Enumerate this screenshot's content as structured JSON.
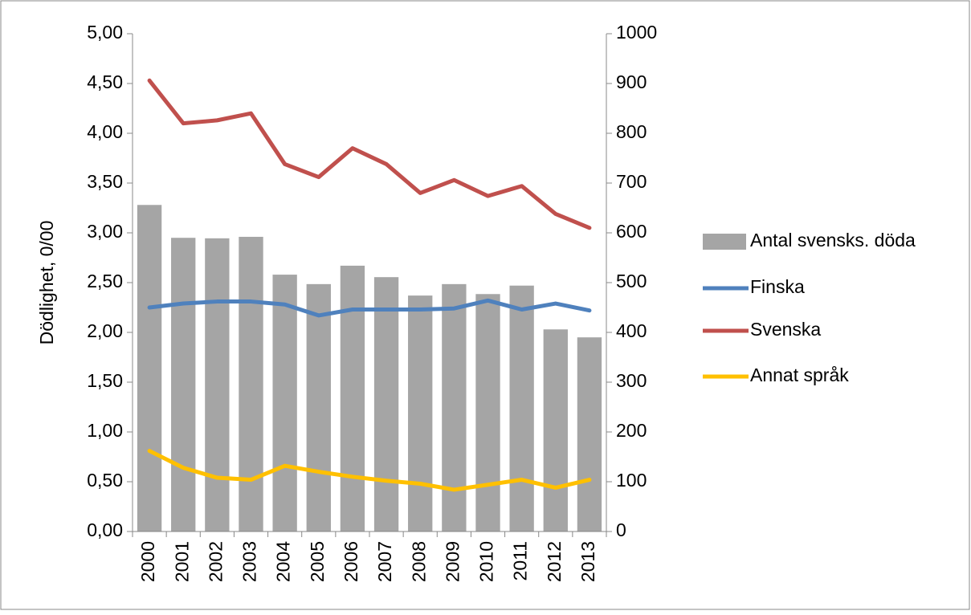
{
  "chart_data": {
    "type": "bar-line",
    "y_label": "Dödlighet, 0/00",
    "categories": [
      "2000",
      "2001",
      "2002",
      "2003",
      "2004",
      "2005",
      "2006",
      "2007",
      "2008",
      "2009",
      "2010",
      "2011",
      "2012",
      "2013"
    ],
    "series": [
      {
        "name": "Antal svensks. döda",
        "type": "bar",
        "axis": "y2",
        "color": "#a5a5a5",
        "values": [
          656,
          590,
          589,
          592,
          516,
          497,
          534,
          511,
          474,
          497,
          477,
          494,
          406,
          390
        ]
      },
      {
        "name": "Finska",
        "type": "line",
        "color": "#4f81bd",
        "values": [
          2.25,
          2.29,
          2.31,
          2.31,
          2.28,
          2.17,
          2.23,
          2.23,
          2.23,
          2.24,
          2.32,
          2.23,
          2.29,
          2.22
        ]
      },
      {
        "name": "Svenska",
        "type": "line",
        "color": "#c0504d",
        "values": [
          4.53,
          4.1,
          4.13,
          4.2,
          3.69,
          3.56,
          3.85,
          3.69,
          3.4,
          3.53,
          3.37,
          3.47,
          3.19,
          3.05
        ]
      },
      {
        "name": "Annat språk",
        "type": "line",
        "color": "#ffc000",
        "values": [
          0.81,
          0.64,
          0.54,
          0.52,
          0.66,
          0.6,
          0.55,
          0.51,
          0.48,
          0.42,
          0.47,
          0.52,
          0.44,
          0.52
        ]
      }
    ],
    "ylim": [
      0,
      5
    ],
    "yticks": [
      {
        "value": 0,
        "label": "0,00"
      },
      {
        "value": 0.5,
        "label": "0,50"
      },
      {
        "value": 1,
        "label": "1,00"
      },
      {
        "value": 1.5,
        "label": "1,50"
      },
      {
        "value": 2,
        "label": "2,00"
      },
      {
        "value": 2.5,
        "label": "2,50"
      },
      {
        "value": 3,
        "label": "3,00"
      },
      {
        "value": 3.5,
        "label": "3,50"
      },
      {
        "value": 4,
        "label": "4,00"
      },
      {
        "value": 4.5,
        "label": "4,50"
      },
      {
        "value": 5,
        "label": "5,00"
      }
    ],
    "y2lim": [
      0,
      1000
    ],
    "y2ticks": [
      0,
      100,
      200,
      300,
      400,
      500,
      600,
      700,
      800,
      900,
      1000
    ],
    "legend": "right",
    "grid": false
  }
}
